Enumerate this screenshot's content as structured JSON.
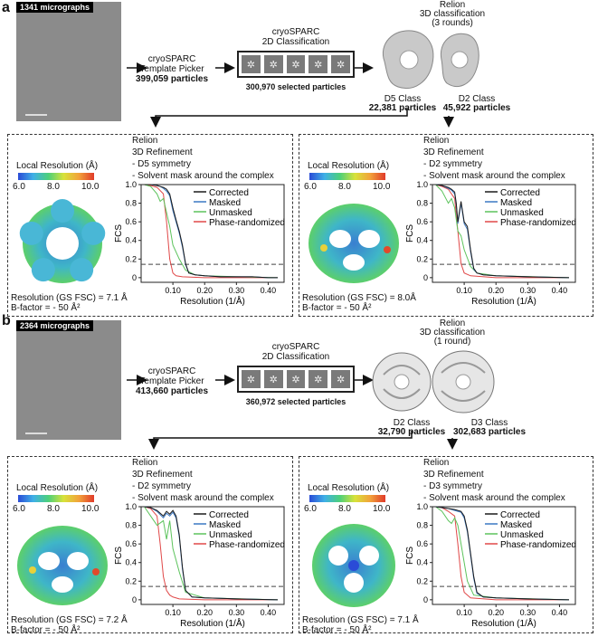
{
  "panel_a": {
    "label": "a",
    "micrographs": "1341 micrographs",
    "picker": {
      "line1": "cryoSPARC",
      "line2": "Template Picker",
      "count": "399,059 particles"
    },
    "class2d": {
      "line1": "cryoSPARC",
      "line2": "2D Classification",
      "selected": "300,970 selected particles"
    },
    "relion3d": {
      "line1": "Relion",
      "line2": "3D classification",
      "line3": "(3 rounds)"
    },
    "classes": [
      {
        "name": "D5 Class",
        "count": "22,381 particles"
      },
      {
        "name": "D2 Class",
        "count": "45,922 particles"
      }
    ],
    "refinements": [
      {
        "local_res": "Local Resolution (Å)",
        "ticks": [
          "6.0",
          "8.0",
          "10.0"
        ],
        "relion": "Relion",
        "refine": "3D Refinement",
        "sym": "- D5 symmetry",
        "mask": "- Solvent mask around the complex",
        "resolution": "Resolution (GS FSC) = 7.1 Å",
        "bfactor": "B-factor = - 50 Å²"
      },
      {
        "local_res": "Local Resolution (Å)",
        "ticks": [
          "6.0",
          "8.0",
          "10.0"
        ],
        "relion": "Relion",
        "refine": "3D Refinement",
        "sym": "- D2 symmetry",
        "mask": "- Solvent mask around the complex",
        "resolution": "Resolution (GS FSC) = 8.0Å",
        "bfactor": "B-factor = - 50 Å²"
      }
    ]
  },
  "panel_b": {
    "label": "b",
    "micrographs": "2364 micrographs",
    "picker": {
      "line1": "cryoSPARC",
      "line2": "Template Picker",
      "count": "413,660 particles"
    },
    "class2d": {
      "line1": "cryoSPARC",
      "line2": "2D Classification",
      "selected": "360,972 selected particles"
    },
    "relion3d": {
      "line1": "Relion",
      "line2": "3D classification",
      "line3": "(1 round)"
    },
    "classes": [
      {
        "name": "D2 Class",
        "count": "32,790 particles"
      },
      {
        "name": "D3 Class",
        "count": "302,683 particles"
      }
    ],
    "refinements": [
      {
        "local_res": "Local Resolution (Å)",
        "ticks": [
          "6.0",
          "8.0",
          "10.0"
        ],
        "relion": "Relion",
        "refine": "3D Refinement",
        "sym": "- D2 symmetry",
        "mask": "- Solvent mask around the complex",
        "resolution": "Resolution (GS FSC) = 7.2 Å",
        "bfactor": "B-factor = - 50 Å²"
      },
      {
        "local_res": "Local Resolution (Å)",
        "ticks": [
          "6.0",
          "8.0",
          "10.0"
        ],
        "relion": "Relion",
        "refine": "3D Refinement",
        "sym": "- D3 symmetry",
        "mask": "- Solvent mask around the complex",
        "resolution": "Resolution (GS FSC) = 7.1 Å",
        "bfactor": "B-factor = - 50 Å²"
      }
    ]
  },
  "fsc_axis": {
    "ylabel": "FCS",
    "xlabel": "Resolution (1/Å)",
    "yticks": [
      "0",
      "0.2",
      "0.4",
      "0.6",
      "0.8",
      "1.0"
    ],
    "xticks": [
      "0.10",
      "0.20",
      "0.30",
      "0.40"
    ]
  },
  "legend": [
    {
      "name": "Corrected",
      "color": "#1a1a1a"
    },
    {
      "name": "Masked",
      "color": "#3b78c2"
    },
    {
      "name": "Unmasked",
      "color": "#5cc35c"
    },
    {
      "name": "Phase-randomized",
      "color": "#e04848"
    }
  ],
  "chart_data": [
    {
      "type": "line",
      "panel": "a-D5",
      "xlim": [
        0,
        0.45
      ],
      "ylim": [
        -0.05,
        1.0
      ],
      "threshold": 0.143,
      "series": [
        {
          "name": "Corrected",
          "x": [
            0.01,
            0.03,
            0.05,
            0.06,
            0.07,
            0.08,
            0.09,
            0.1,
            0.11,
            0.12,
            0.13,
            0.14,
            0.15,
            0.17,
            0.2,
            0.25,
            0.3,
            0.35,
            0.4,
            0.43
          ],
          "y": [
            1,
            1,
            0.99,
            0.98,
            0.97,
            0.95,
            0.9,
            0.75,
            0.62,
            0.5,
            0.35,
            0.15,
            0.05,
            0.03,
            0.02,
            0.01,
            0.01,
            0.01,
            0.0,
            0.0
          ]
        },
        {
          "name": "Masked",
          "x": [
            0.01,
            0.03,
            0.05,
            0.06,
            0.07,
            0.08,
            0.09,
            0.1,
            0.11,
            0.12,
            0.13,
            0.14,
            0.15,
            0.17,
            0.2,
            0.25,
            0.3,
            0.35,
            0.4,
            0.43
          ],
          "y": [
            1,
            1,
            0.99,
            0.98,
            0.96,
            0.93,
            0.88,
            0.72,
            0.6,
            0.48,
            0.33,
            0.14,
            0.05,
            0.03,
            0.02,
            0.01,
            0.01,
            0.01,
            0.0,
            0.0
          ]
        },
        {
          "name": "Unmasked",
          "x": [
            0.01,
            0.03,
            0.05,
            0.06,
            0.07,
            0.08,
            0.09,
            0.1,
            0.12,
            0.14,
            0.17,
            0.2,
            0.3,
            0.43
          ],
          "y": [
            1,
            0.98,
            0.9,
            0.82,
            0.85,
            0.7,
            0.55,
            0.35,
            0.2,
            0.08,
            0.03,
            0.02,
            0.01,
            0.0
          ]
        },
        {
          "name": "Phase-randomized",
          "x": [
            0.01,
            0.03,
            0.05,
            0.07,
            0.08,
            0.09,
            0.1,
            0.11,
            0.13,
            0.2,
            0.43
          ],
          "y": [
            1,
            0.99,
            0.97,
            0.9,
            0.6,
            0.2,
            0.05,
            0.02,
            0.01,
            0.0,
            0.0
          ]
        }
      ]
    },
    {
      "type": "line",
      "panel": "a-D2",
      "xlim": [
        0,
        0.45
      ],
      "ylim": [
        -0.05,
        1.0
      ],
      "threshold": 0.143,
      "series": [
        {
          "name": "Corrected",
          "x": [
            0.01,
            0.03,
            0.05,
            0.06,
            0.07,
            0.075,
            0.08,
            0.09,
            0.1,
            0.11,
            0.12,
            0.13,
            0.14,
            0.16,
            0.2,
            0.3,
            0.43
          ],
          "y": [
            1,
            0.99,
            0.97,
            0.95,
            0.92,
            0.8,
            0.6,
            0.82,
            0.6,
            0.55,
            0.3,
            0.1,
            0.05,
            0.03,
            0.02,
            0.01,
            0.0
          ]
        },
        {
          "name": "Masked",
          "x": [
            0.01,
            0.03,
            0.05,
            0.06,
            0.07,
            0.075,
            0.08,
            0.09,
            0.1,
            0.11,
            0.12,
            0.13,
            0.14,
            0.16,
            0.2,
            0.3,
            0.43
          ],
          "y": [
            1,
            0.99,
            0.96,
            0.94,
            0.9,
            0.78,
            0.58,
            0.8,
            0.58,
            0.52,
            0.28,
            0.09,
            0.05,
            0.03,
            0.02,
            0.01,
            0.0
          ]
        },
        {
          "name": "Unmasked",
          "x": [
            0.01,
            0.03,
            0.05,
            0.06,
            0.07,
            0.08,
            0.09,
            0.1,
            0.12,
            0.14,
            0.2,
            0.43
          ],
          "y": [
            1,
            0.93,
            0.8,
            0.85,
            0.75,
            0.5,
            0.45,
            0.3,
            0.12,
            0.05,
            0.02,
            0.0
          ]
        },
        {
          "name": "Phase-randomized",
          "x": [
            0.01,
            0.03,
            0.05,
            0.07,
            0.08,
            0.09,
            0.1,
            0.12,
            0.2,
            0.43
          ],
          "y": [
            1,
            0.98,
            0.95,
            0.85,
            0.5,
            0.15,
            0.05,
            0.02,
            0.0,
            0.0
          ]
        }
      ]
    },
    {
      "type": "line",
      "panel": "b-D2",
      "xlim": [
        0,
        0.45
      ],
      "ylim": [
        -0.05,
        1.0
      ],
      "threshold": 0.143,
      "series": [
        {
          "name": "Corrected",
          "x": [
            0.01,
            0.03,
            0.05,
            0.07,
            0.08,
            0.09,
            0.1,
            0.11,
            0.12,
            0.13,
            0.14,
            0.16,
            0.2,
            0.3,
            0.43
          ],
          "y": [
            1,
            0.99,
            0.96,
            0.9,
            0.95,
            0.92,
            0.96,
            0.9,
            0.7,
            0.35,
            0.1,
            0.03,
            0.02,
            0.01,
            0.0
          ]
        },
        {
          "name": "Masked",
          "x": [
            0.01,
            0.03,
            0.05,
            0.07,
            0.08,
            0.09,
            0.1,
            0.11,
            0.12,
            0.13,
            0.14,
            0.16,
            0.2,
            0.3,
            0.43
          ],
          "y": [
            1,
            0.99,
            0.95,
            0.88,
            0.93,
            0.9,
            0.94,
            0.88,
            0.68,
            0.33,
            0.1,
            0.03,
            0.02,
            0.01,
            0.0
          ]
        },
        {
          "name": "Unmasked",
          "x": [
            0.01,
            0.03,
            0.05,
            0.07,
            0.08,
            0.09,
            0.1,
            0.12,
            0.14,
            0.2,
            0.43
          ],
          "y": [
            1,
            0.9,
            0.8,
            0.85,
            0.65,
            0.85,
            0.55,
            0.3,
            0.08,
            0.02,
            0.0
          ]
        },
        {
          "name": "Phase-randomized",
          "x": [
            0.01,
            0.03,
            0.05,
            0.06,
            0.07,
            0.08,
            0.09,
            0.1,
            0.12,
            0.2,
            0.43
          ],
          "y": [
            1,
            0.98,
            0.9,
            0.6,
            0.25,
            0.1,
            0.05,
            0.03,
            0.01,
            0.0,
            0.0
          ]
        }
      ]
    },
    {
      "type": "line",
      "panel": "b-D3",
      "xlim": [
        0,
        0.45
      ],
      "ylim": [
        -0.05,
        1.0
      ],
      "threshold": 0.143,
      "series": [
        {
          "name": "Corrected",
          "x": [
            0.01,
            0.03,
            0.05,
            0.07,
            0.09,
            0.1,
            0.11,
            0.12,
            0.13,
            0.14,
            0.16,
            0.2,
            0.3,
            0.43
          ],
          "y": [
            1,
            0.99,
            0.98,
            0.97,
            0.95,
            0.9,
            0.75,
            0.5,
            0.25,
            0.08,
            0.03,
            0.02,
            0.01,
            0.0
          ]
        },
        {
          "name": "Masked",
          "x": [
            0.01,
            0.03,
            0.05,
            0.07,
            0.09,
            0.1,
            0.11,
            0.12,
            0.13,
            0.14,
            0.16,
            0.2,
            0.3,
            0.43
          ],
          "y": [
            1,
            0.99,
            0.98,
            0.96,
            0.94,
            0.88,
            0.73,
            0.48,
            0.23,
            0.07,
            0.03,
            0.02,
            0.01,
            0.0
          ]
        },
        {
          "name": "Unmasked",
          "x": [
            0.01,
            0.03,
            0.05,
            0.06,
            0.07,
            0.08,
            0.09,
            0.1,
            0.11,
            0.13,
            0.2,
            0.43
          ],
          "y": [
            1,
            0.95,
            0.85,
            0.82,
            0.88,
            0.8,
            0.6,
            0.4,
            0.2,
            0.05,
            0.02,
            0.0
          ]
        },
        {
          "name": "Phase-randomized",
          "x": [
            0.01,
            0.03,
            0.05,
            0.07,
            0.08,
            0.09,
            0.1,
            0.12,
            0.2,
            0.43
          ],
          "y": [
            1,
            0.99,
            0.95,
            0.9,
            0.6,
            0.25,
            0.08,
            0.02,
            0.0,
            0.0
          ]
        }
      ]
    }
  ]
}
